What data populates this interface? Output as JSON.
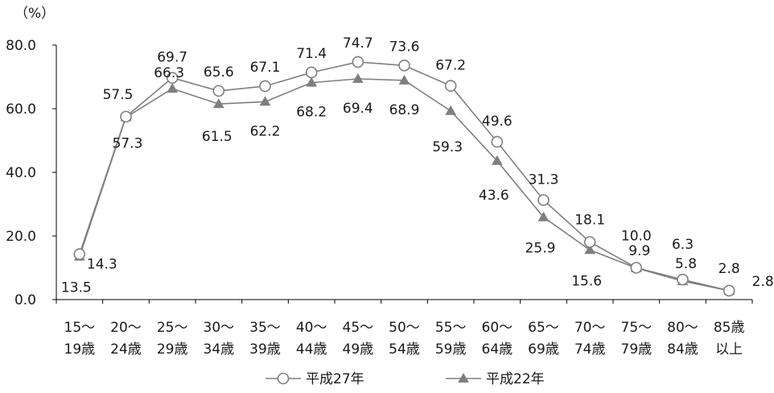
{
  "chart_data": {
    "type": "line",
    "unit_label": "（%）",
    "ylim": [
      0,
      80
    ],
    "yticks": [
      "0.0",
      "20.0",
      "40.0",
      "60.0",
      "80.0"
    ],
    "ytick_values": [
      0,
      20,
      40,
      60,
      80
    ],
    "categories": [
      [
        "15～",
        "19歳"
      ],
      [
        "20～",
        "24歳"
      ],
      [
        "25～",
        "29歳"
      ],
      [
        "30～",
        "34歳"
      ],
      [
        "35～",
        "39歳"
      ],
      [
        "40～",
        "44歳"
      ],
      [
        "45～",
        "49歳"
      ],
      [
        "50～",
        "54歳"
      ],
      [
        "55～",
        "59歳"
      ],
      [
        "60～",
        "64歳"
      ],
      [
        "65～",
        "69歳"
      ],
      [
        "70～",
        "74歳"
      ],
      [
        "75～",
        "79歳"
      ],
      [
        "80～",
        "84歳"
      ],
      [
        "85歳",
        "以上"
      ]
    ],
    "series": [
      {
        "name": "平成27年",
        "marker": "circle",
        "values": [
          14.3,
          57.5,
          69.7,
          65.6,
          67.1,
          71.4,
          74.7,
          73.6,
          67.2,
          49.6,
          31.3,
          18.1,
          10.0,
          6.3,
          2.8
        ],
        "labels": [
          "14.3",
          "57.5",
          "69.7",
          "65.6",
          "67.1",
          "71.4",
          "74.7",
          "73.6",
          "67.2",
          "49.6",
          "31.3",
          "18.1",
          "10.0",
          "6.3",
          "2.8"
        ]
      },
      {
        "name": "平成22年",
        "marker": "triangle",
        "values": [
          13.5,
          57.3,
          66.3,
          61.5,
          62.2,
          68.2,
          69.4,
          68.9,
          59.3,
          43.6,
          25.9,
          15.6,
          9.9,
          5.8,
          2.8
        ],
        "labels": [
          "13.5",
          "57.3",
          "66.3",
          "61.5",
          "62.2",
          "68.2",
          "69.4",
          "68.9",
          "59.3",
          "43.6",
          "25.9",
          "15.6",
          "9.9",
          "5.8",
          "2.8"
        ]
      }
    ],
    "grid": false,
    "legend_position": "bottom-center",
    "colors": {
      "line": "#7f7f7f",
      "marker_fill": "#ffffff",
      "triangle_fill": "#7f7f7f",
      "axis": "#000000"
    }
  }
}
